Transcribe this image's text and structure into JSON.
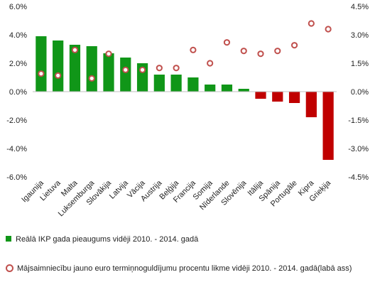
{
  "chart_data": {
    "type": "bar",
    "categories": [
      "Igaunija",
      "Lietuva",
      "Malta",
      "Luksemburga",
      "Slovākija",
      "Latvija",
      "Vācija",
      "Austrija",
      "Beļģija",
      "Francija",
      "Somija",
      "Nīderlande",
      "Slovēnija",
      "Itālija",
      "Spānija",
      "Portugāle",
      "Kipra",
      "Grieķija"
    ],
    "left_axis": {
      "ylim": [
        -6.0,
        6.0
      ],
      "ticks": [
        "-6.0%",
        "-4.0%",
        "-2.0%",
        "0.0%",
        "2.0%",
        "4.0%",
        "6.0%"
      ]
    },
    "right_axis": {
      "ylim": [
        -4.5,
        4.5
      ],
      "ticks": [
        "-4.5%",
        "-3.0%",
        "-1.5%",
        "0.0%",
        "1.5%",
        "3.0%",
        "4.5%"
      ]
    },
    "series": [
      {
        "name": "Reālā IKP gada pieaugums vidēji 2010. - 2014. gadā",
        "kind": "bar",
        "axis": "left",
        "values": [
          3.9,
          3.6,
          3.3,
          3.2,
          2.7,
          2.4,
          2.0,
          1.2,
          1.2,
          1.0,
          0.5,
          0.5,
          0.2,
          -0.5,
          -0.7,
          -0.8,
          -1.8,
          -4.8
        ],
        "color_positive": "#109618",
        "color_negative": "#c00000"
      },
      {
        "name": "Mājsaimniecību jauno euro termiņnoguldījumu procentu likme vidēji 2010. - 2014. gadā(labā ass)",
        "kind": "marker",
        "axis": "right",
        "values": [
          0.95,
          0.85,
          2.2,
          0.7,
          2.0,
          1.15,
          1.15,
          1.25,
          1.25,
          2.2,
          1.5,
          2.6,
          2.15,
          2.0,
          2.15,
          2.45,
          3.6,
          3.3
        ],
        "color": "#c0504d"
      }
    ],
    "grid": false,
    "legend_position": "bottom"
  },
  "legend": {
    "series1_label": "Reālā IKP gada pieaugums vidēji 2010. - 2014. gadā",
    "series2_label": "Mājsaimniecību jauno euro termiņnoguldījumu procentu likme vidēji 2010. - 2014. gadā(labā ass)"
  }
}
